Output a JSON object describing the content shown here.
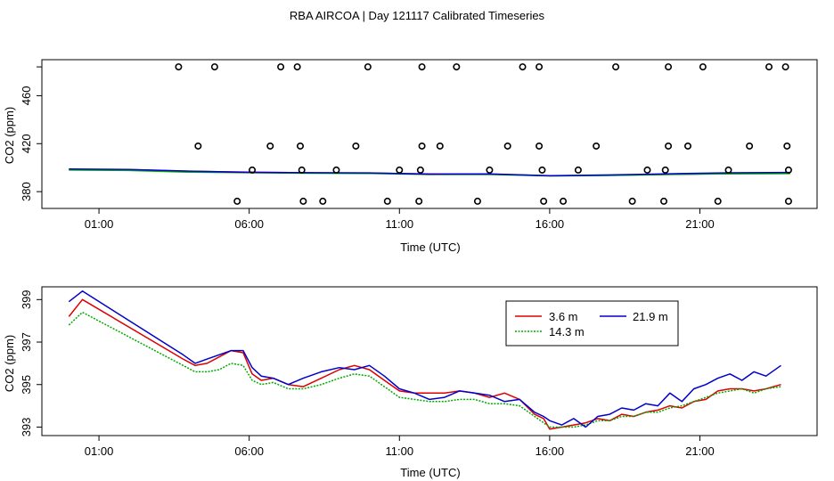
{
  "title": "RBA AIRCOA |  Day 121117  Calibrated Timeseries",
  "colors": {
    "red": "#dd0000",
    "green": "#00aa00",
    "blue": "#0000cc",
    "axis": "#000000"
  },
  "chart_data": [
    {
      "type": "scatter",
      "panel": "top",
      "xlabel": "Time (UTC)",
      "ylabel": "CO2 (ppm)",
      "x_units": "hours UTC",
      "xlim": [
        -0.9,
        24.9
      ],
      "ylim": [
        366,
        490
      ],
      "xticks": [
        1,
        6,
        11,
        16,
        21
      ],
      "xtick_labels": [
        "01:00",
        "06:00",
        "11:00",
        "16:00",
        "21:00"
      ],
      "yticks": [
        380,
        420,
        460
      ],
      "ytick_labels": [
        "380",
        "420",
        "460"
      ],
      "top_tick_value": 484,
      "points": [
        [
          3.65,
          484
        ],
        [
          4.85,
          484
        ],
        [
          7.05,
          484
        ],
        [
          7.6,
          484
        ],
        [
          9.95,
          484
        ],
        [
          11.75,
          484
        ],
        [
          12.9,
          484
        ],
        [
          15.1,
          484
        ],
        [
          15.65,
          484
        ],
        [
          18.2,
          484
        ],
        [
          19.95,
          484
        ],
        [
          21.1,
          484
        ],
        [
          23.3,
          484
        ],
        [
          23.85,
          484
        ],
        [
          4.3,
          418
        ],
        [
          6.7,
          418
        ],
        [
          7.7,
          418
        ],
        [
          9.55,
          418
        ],
        [
          11.75,
          418
        ],
        [
          12.35,
          418
        ],
        [
          14.6,
          418
        ],
        [
          15.65,
          418
        ],
        [
          17.55,
          418
        ],
        [
          19.95,
          418
        ],
        [
          20.6,
          418
        ],
        [
          22.65,
          418
        ],
        [
          23.9,
          418
        ],
        [
          6.1,
          398
        ],
        [
          7.75,
          398
        ],
        [
          8.9,
          398
        ],
        [
          11.0,
          398
        ],
        [
          11.7,
          398
        ],
        [
          14.0,
          398
        ],
        [
          15.75,
          398
        ],
        [
          16.95,
          398
        ],
        [
          19.25,
          398
        ],
        [
          19.85,
          398
        ],
        [
          21.95,
          398
        ],
        [
          23.95,
          398
        ],
        [
          5.6,
          372
        ],
        [
          7.8,
          372
        ],
        [
          8.45,
          372
        ],
        [
          10.6,
          372
        ],
        [
          11.65,
          372
        ],
        [
          13.6,
          372
        ],
        [
          15.8,
          372
        ],
        [
          16.45,
          372
        ],
        [
          18.75,
          372
        ],
        [
          19.8,
          372
        ],
        [
          21.6,
          372
        ],
        [
          23.95,
          372
        ]
      ],
      "lines": [
        {
          "name": "3.6 m",
          "color": "#dd0000",
          "x": [
            0,
            2,
            4,
            6,
            8,
            10,
            12,
            14,
            16,
            18,
            20,
            22,
            24
          ],
          "values": [
            398.5,
            398.3,
            397.0,
            396.2,
            395.7,
            395.4,
            394.7,
            394.6,
            393.2,
            393.6,
            394.4,
            395.0,
            395.2
          ]
        },
        {
          "name": "14.3 m",
          "color": "#00aa00",
          "x": [
            0,
            2,
            4,
            6,
            8,
            10,
            12,
            14,
            16,
            18,
            20,
            22,
            24
          ],
          "values": [
            398.0,
            397.6,
            396.3,
            395.8,
            395.3,
            395.2,
            394.3,
            394.3,
            393.1,
            393.5,
            394.3,
            394.9,
            395.0
          ]
        },
        {
          "name": "21.9 m",
          "color": "#0000cc",
          "x": [
            0,
            2,
            4,
            6,
            8,
            10,
            12,
            14,
            16,
            18,
            20,
            22,
            24
          ],
          "values": [
            398.8,
            398.5,
            397.1,
            396.1,
            395.8,
            395.6,
            394.6,
            394.7,
            393.3,
            393.9,
            394.9,
            395.7,
            396.0
          ]
        }
      ]
    },
    {
      "type": "line",
      "panel": "bottom",
      "xlabel": "Time (UTC)",
      "ylabel": "CO2 (ppm)",
      "x_units": "hours UTC",
      "xlim": [
        -0.9,
        24.9
      ],
      "ylim": [
        392.6,
        399.6
      ],
      "xticks": [
        1,
        6,
        11,
        16,
        21
      ],
      "xtick_labels": [
        "01:00",
        "06:00",
        "11:00",
        "16:00",
        "21:00"
      ],
      "yticks": [
        393,
        395,
        397,
        399
      ],
      "ytick_labels": [
        "393",
        "395",
        "397",
        "399"
      ],
      "legend": {
        "placement": "top-right",
        "entries": [
          "3.6 m",
          "14.3 m",
          "21.9 m"
        ]
      },
      "series": [
        {
          "name": "3.6 m",
          "color": "#dd0000",
          "dash": "",
          "x": [
            0.0,
            0.45,
            3.8,
            4.2,
            4.6,
            5.0,
            5.4,
            5.8,
            6.1,
            6.4,
            6.8,
            7.3,
            7.8,
            8.4,
            9.0,
            9.5,
            10.0,
            10.5,
            11.0,
            11.5,
            12.0,
            12.5,
            13.0,
            13.5,
            14.0,
            14.5,
            15.0,
            15.5,
            15.8,
            16.0,
            16.4,
            16.8,
            17.2,
            17.6,
            18.0,
            18.4,
            18.8,
            19.2,
            19.6,
            20.0,
            20.4,
            20.8,
            21.2,
            21.6,
            22.0,
            22.4,
            22.8,
            23.2,
            23.7
          ],
          "values": [
            398.2,
            399.0,
            396.2,
            395.9,
            396.0,
            396.3,
            396.6,
            396.5,
            395.5,
            395.2,
            395.3,
            395.0,
            394.9,
            395.3,
            395.7,
            395.9,
            395.7,
            395.2,
            394.7,
            394.6,
            394.6,
            394.6,
            394.7,
            394.6,
            394.4,
            394.6,
            394.3,
            393.6,
            393.4,
            392.9,
            393.0,
            393.1,
            393.2,
            393.4,
            393.3,
            393.6,
            393.5,
            393.7,
            393.8,
            394.0,
            393.9,
            394.2,
            394.3,
            394.7,
            394.8,
            394.8,
            394.7,
            394.8,
            395.0
          ]
        },
        {
          "name": "14.3 m",
          "color": "#00aa00",
          "dash": "2,1.5",
          "x": [
            0.0,
            0.45,
            3.8,
            4.2,
            4.6,
            5.0,
            5.4,
            5.8,
            6.1,
            6.4,
            6.8,
            7.3,
            7.8,
            8.4,
            9.0,
            9.5,
            10.0,
            10.5,
            11.0,
            11.5,
            12.0,
            12.5,
            13.0,
            13.5,
            14.0,
            14.5,
            15.0,
            15.5,
            15.8,
            16.0,
            16.4,
            16.8,
            17.2,
            17.6,
            18.0,
            18.4,
            18.8,
            19.2,
            19.6,
            20.0,
            20.4,
            20.8,
            21.2,
            21.6,
            22.0,
            22.4,
            22.8,
            23.2,
            23.7
          ],
          "values": [
            397.8,
            398.4,
            395.9,
            395.6,
            395.6,
            395.7,
            396.0,
            395.9,
            395.2,
            395.0,
            395.1,
            394.8,
            394.8,
            395.0,
            395.3,
            395.5,
            395.4,
            394.9,
            394.4,
            394.3,
            394.2,
            394.2,
            394.3,
            394.3,
            394.1,
            394.1,
            394.0,
            393.5,
            393.2,
            393.0,
            393.0,
            393.0,
            393.1,
            393.3,
            393.3,
            393.5,
            393.5,
            393.7,
            393.7,
            393.9,
            394.0,
            394.2,
            394.4,
            394.6,
            394.7,
            394.8,
            394.6,
            394.8,
            394.9
          ]
        },
        {
          "name": "21.9 m",
          "color": "#0000cc",
          "dash": "",
          "x": [
            0.0,
            0.45,
            3.8,
            4.2,
            4.6,
            5.0,
            5.4,
            5.8,
            6.1,
            6.4,
            6.8,
            7.3,
            7.8,
            8.4,
            9.0,
            9.5,
            10.0,
            10.5,
            11.0,
            11.5,
            12.0,
            12.5,
            13.0,
            13.5,
            14.0,
            14.5,
            15.0,
            15.5,
            15.8,
            16.0,
            16.4,
            16.8,
            17.2,
            17.6,
            18.0,
            18.4,
            18.8,
            19.2,
            19.6,
            20.0,
            20.4,
            20.8,
            21.2,
            21.6,
            22.0,
            22.4,
            22.8,
            23.2,
            23.7
          ],
          "values": [
            398.9,
            399.4,
            396.4,
            396.0,
            396.2,
            396.4,
            396.6,
            396.6,
            395.8,
            395.4,
            395.3,
            395.0,
            395.3,
            395.6,
            395.8,
            395.7,
            395.9,
            395.4,
            394.8,
            394.6,
            394.3,
            394.4,
            394.7,
            394.6,
            394.5,
            394.2,
            394.3,
            393.7,
            393.5,
            393.3,
            393.1,
            393.4,
            393.0,
            393.5,
            393.6,
            393.9,
            393.8,
            394.1,
            394.0,
            394.6,
            394.2,
            394.8,
            395.0,
            395.3,
            395.5,
            395.2,
            395.6,
            395.4,
            395.9
          ]
        }
      ]
    }
  ]
}
